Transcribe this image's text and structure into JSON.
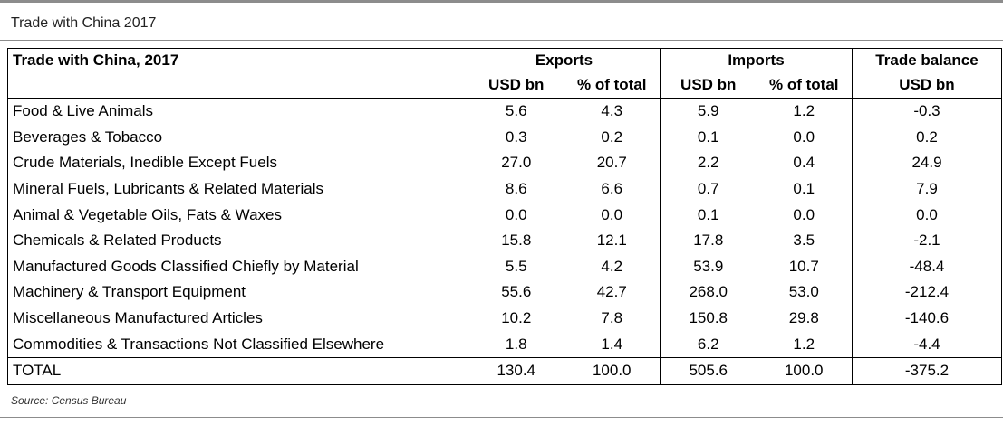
{
  "page": {
    "title": "Trade with China 2017",
    "source": "Source: Census Bureau"
  },
  "table": {
    "header_label": "Trade with China, 2017",
    "groups": {
      "exports": "Exports",
      "imports": "Imports",
      "balance": "Trade balance"
    },
    "subheaders": {
      "exp_usd": "USD bn",
      "exp_pct": "% of total",
      "imp_usd": "USD bn",
      "imp_pct": "% of total",
      "bal_usd": "USD bn"
    },
    "rows": [
      {
        "label": "Food & Live Animals",
        "exp_usd": "5.6",
        "exp_pct": "4.3",
        "imp_usd": "5.9",
        "imp_pct": "1.2",
        "balance": "-0.3"
      },
      {
        "label": "Beverages & Tobacco",
        "exp_usd": "0.3",
        "exp_pct": "0.2",
        "imp_usd": "0.1",
        "imp_pct": "0.0",
        "balance": "0.2"
      },
      {
        "label": "Crude Materials, Inedible Except Fuels",
        "exp_usd": "27.0",
        "exp_pct": "20.7",
        "imp_usd": "2.2",
        "imp_pct": "0.4",
        "balance": "24.9"
      },
      {
        "label": "Mineral Fuels, Lubricants & Related Materials",
        "exp_usd": "8.6",
        "exp_pct": "6.6",
        "imp_usd": "0.7",
        "imp_pct": "0.1",
        "balance": "7.9"
      },
      {
        "label": "Animal & Vegetable Oils, Fats & Waxes",
        "exp_usd": "0.0",
        "exp_pct": "0.0",
        "imp_usd": "0.1",
        "imp_pct": "0.0",
        "balance": "0.0"
      },
      {
        "label": "Chemicals & Related Products",
        "exp_usd": "15.8",
        "exp_pct": "12.1",
        "imp_usd": "17.8",
        "imp_pct": "3.5",
        "balance": "-2.1"
      },
      {
        "label": "Manufactured Goods Classified Chiefly by Material",
        "exp_usd": "5.5",
        "exp_pct": "4.2",
        "imp_usd": "53.9",
        "imp_pct": "10.7",
        "balance": "-48.4"
      },
      {
        "label": "Machinery & Transport Equipment",
        "exp_usd": "55.6",
        "exp_pct": "42.7",
        "imp_usd": "268.0",
        "imp_pct": "53.0",
        "balance": "-212.4"
      },
      {
        "label": "Miscellaneous Manufactured Articles",
        "exp_usd": "10.2",
        "exp_pct": "7.8",
        "imp_usd": "150.8",
        "imp_pct": "29.8",
        "balance": "-140.6"
      },
      {
        "label": "Commodities & Transactions Not Classified Elsewhere",
        "exp_usd": "1.8",
        "exp_pct": "1.4",
        "imp_usd": "6.2",
        "imp_pct": "1.2",
        "balance": "-4.4"
      }
    ],
    "total": {
      "label": "TOTAL",
      "exp_usd": "130.4",
      "exp_pct": "100.0",
      "imp_usd": "505.6",
      "imp_pct": "100.0",
      "balance": "-375.2"
    }
  }
}
